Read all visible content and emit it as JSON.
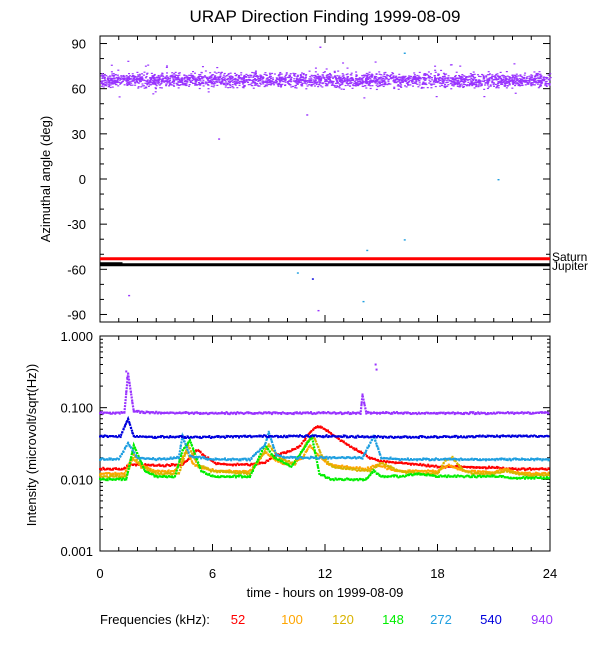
{
  "chart_data": [
    {
      "type": "scatter",
      "title": "URAP Direction Finding  1999-08-09",
      "ylabel": "Azimuthal angle (deg)",
      "xlim": [
        0,
        24
      ],
      "ylim": [
        -95,
        95
      ],
      "yticks": [
        90,
        60,
        30,
        0,
        -30,
        -60,
        -90
      ],
      "cluster": {
        "center": 66,
        "spread": 7,
        "color": "#9933ff",
        "label": "940"
      },
      "outliers": [
        {
          "x": 1.5,
          "y": -77,
          "color": "#9933ff"
        },
        {
          "x": 6.3,
          "y": 27,
          "color": "#9933ff"
        },
        {
          "x": 10.5,
          "y": -62,
          "color": "#1f9fe0"
        },
        {
          "x": 11.0,
          "y": 43,
          "color": "#9933ff"
        },
        {
          "x": 11.3,
          "y": -66,
          "color": "#0000dd"
        },
        {
          "x": 11.6,
          "y": -87,
          "color": "#9933ff"
        },
        {
          "x": 11.7,
          "y": 88,
          "color": "#9933ff"
        },
        {
          "x": 14.0,
          "y": -81,
          "color": "#1f9fe0"
        },
        {
          "x": 14.2,
          "y": -47,
          "color": "#1f9fe0"
        },
        {
          "x": 16.2,
          "y": -40,
          "color": "#1f9fe0"
        },
        {
          "x": 16.2,
          "y": 84,
          "color": "#1f9fe0"
        },
        {
          "x": 21.2,
          "y": 0,
          "color": "#1f9fe0"
        }
      ],
      "reference_lines": [
        {
          "name": "Saturn",
          "y": -53,
          "color": "#ff0000"
        },
        {
          "name": "Jupiter",
          "y": -57,
          "color": "#000000"
        }
      ]
    },
    {
      "type": "line",
      "ylabel": "Intensity (microvolt/sqrt(Hz))",
      "xlabel": "time - hours on 1999-08-09",
      "xlim": [
        0,
        24
      ],
      "xticks": [
        "0",
        "6",
        "12",
        "18",
        "24"
      ],
      "yscale": "log",
      "ylim": [
        0.001,
        1.0
      ],
      "yticks": [
        "1.000",
        "0.100",
        "0.010",
        "0.001"
      ],
      "legend_title": "Frequencies (kHz):",
      "series": [
        {
          "name": "52",
          "color": "#ff0000",
          "x": [
            0,
            1.2,
            1.6,
            2.0,
            3.0,
            4.4,
            4.8,
            5.2,
            5.6,
            6.2,
            7.0,
            8.0,
            8.8,
            9.4,
            10.0,
            10.6,
            11.2,
            11.6,
            12.0,
            12.4,
            13.0,
            14.0,
            14.4,
            15.0,
            16.0,
            17.0,
            18.0,
            19.0,
            20.0,
            21.0,
            22.0,
            23.0,
            24.0
          ],
          "values": [
            0.014,
            0.014,
            0.016,
            0.016,
            0.0155,
            0.016,
            0.02,
            0.026,
            0.021,
            0.0165,
            0.016,
            0.016,
            0.017,
            0.022,
            0.024,
            0.028,
            0.045,
            0.055,
            0.05,
            0.042,
            0.033,
            0.023,
            0.02,
            0.018,
            0.017,
            0.016,
            0.015,
            0.015,
            0.0148,
            0.0145,
            0.014,
            0.014,
            0.014
          ]
        },
        {
          "name": "100",
          "color": "#ffa500",
          "x": [
            0,
            1.3,
            1.7,
            2.1,
            3.0,
            4.0,
            4.6,
            5.0,
            5.6,
            6.4,
            8.0,
            8.8,
            9.4,
            10.0,
            10.8,
            11.2,
            11.6,
            12.2,
            13.0,
            14.2,
            14.8,
            15.4,
            16.2,
            17.0,
            18.0,
            18.6,
            19.4,
            20.0,
            21.0,
            21.6,
            22.2,
            23.0,
            24.0
          ],
          "values": [
            0.012,
            0.012,
            0.02,
            0.016,
            0.013,
            0.013,
            0.025,
            0.016,
            0.014,
            0.013,
            0.013,
            0.024,
            0.018,
            0.016,
            0.02,
            0.03,
            0.022,
            0.016,
            0.015,
            0.014,
            0.016,
            0.014,
            0.013,
            0.013,
            0.013,
            0.016,
            0.013,
            0.0128,
            0.0125,
            0.014,
            0.0125,
            0.012,
            0.012
          ]
        },
        {
          "name": "120",
          "color": "#d9b300",
          "x": [
            0,
            1.4,
            1.8,
            2.2,
            3.0,
            4.2,
            4.7,
            5.2,
            6.0,
            8.0,
            9.0,
            9.6,
            10.4,
            11.0,
            11.4,
            11.8,
            12.4,
            13.2,
            14.4,
            15.0,
            16.0,
            17.0,
            18.0,
            18.4,
            18.8,
            19.4,
            20.0,
            21.0,
            21.6,
            22.2,
            23.0,
            24.0
          ],
          "values": [
            0.011,
            0.011,
            0.022,
            0.015,
            0.012,
            0.012,
            0.03,
            0.016,
            0.013,
            0.012,
            0.03,
            0.02,
            0.016,
            0.032,
            0.04,
            0.022,
            0.015,
            0.014,
            0.013,
            0.017,
            0.013,
            0.012,
            0.012,
            0.018,
            0.02,
            0.013,
            0.012,
            0.012,
            0.013,
            0.012,
            0.0115,
            0.0115
          ]
        },
        {
          "name": "148",
          "color": "#00ee00",
          "x": [
            0,
            1.4,
            1.8,
            2.4,
            3.0,
            4.0,
            4.4,
            4.8,
            5.4,
            6.0,
            8.0,
            8.8,
            9.3,
            10.2,
            10.8,
            11.3,
            11.7,
            12.3,
            13.0,
            14.2,
            14.6,
            15.0,
            16.0,
            17.0,
            18.0,
            19.0,
            20.0,
            21.0,
            22.0,
            23.0,
            24.0
          ],
          "values": [
            0.01,
            0.01,
            0.03,
            0.013,
            0.011,
            0.011,
            0.025,
            0.035,
            0.013,
            0.011,
            0.011,
            0.03,
            0.02,
            0.015,
            0.025,
            0.04,
            0.012,
            0.01,
            0.01,
            0.01,
            0.013,
            0.011,
            0.011,
            0.012,
            0.011,
            0.011,
            0.011,
            0.011,
            0.0105,
            0.0105,
            0.0105
          ]
        },
        {
          "name": "272",
          "color": "#1f9fe0",
          "x": [
            0,
            1.0,
            1.5,
            2.0,
            3.0,
            4.2,
            4.4,
            4.8,
            6.0,
            8.0,
            8.8,
            9.0,
            9.4,
            10.0,
            11.0,
            12.0,
            13.0,
            14.0,
            14.6,
            15.0,
            16.0,
            17.0,
            18.0,
            19.0,
            20.0,
            21.0,
            22.0,
            23.0,
            24.0
          ],
          "values": [
            0.019,
            0.019,
            0.032,
            0.02,
            0.019,
            0.02,
            0.04,
            0.021,
            0.019,
            0.019,
            0.03,
            0.045,
            0.022,
            0.02,
            0.02,
            0.02,
            0.02,
            0.02,
            0.04,
            0.02,
            0.019,
            0.019,
            0.019,
            0.019,
            0.019,
            0.019,
            0.019,
            0.019,
            0.019
          ]
        },
        {
          "name": "540",
          "color": "#0000dd",
          "x": [
            0,
            1.1,
            1.5,
            1.8,
            3.0,
            6.0,
            9.0,
            12.0,
            15.0,
            18.0,
            21.0,
            24.0
          ],
          "values": [
            0.04,
            0.04,
            0.07,
            0.04,
            0.039,
            0.039,
            0.04,
            0.04,
            0.039,
            0.039,
            0.04,
            0.04
          ]
        },
        {
          "name": "940",
          "color": "#9933ff",
          "x": [
            0,
            1.3,
            1.5,
            1.8,
            3.0,
            6.0,
            9.0,
            12.0,
            13.9,
            14.0,
            14.2,
            16.0,
            18.0,
            21.0,
            24.0
          ],
          "values": [
            0.085,
            0.085,
            0.3,
            0.088,
            0.085,
            0.084,
            0.084,
            0.084,
            0.084,
            0.15,
            0.085,
            0.084,
            0.084,
            0.084,
            0.085
          ]
        }
      ],
      "spikes": [
        {
          "x": 1.4,
          "y": 0.32,
          "color": "#9933ff"
        },
        {
          "x": 1.45,
          "y": 0.26,
          "color": "#9933ff"
        },
        {
          "x": 14.7,
          "y": 0.4,
          "color": "#9933ff"
        },
        {
          "x": 14.75,
          "y": 0.34,
          "color": "#9933ff"
        },
        {
          "x": 6.3,
          "y": 0.04,
          "color": "#0000dd"
        }
      ]
    }
  ]
}
